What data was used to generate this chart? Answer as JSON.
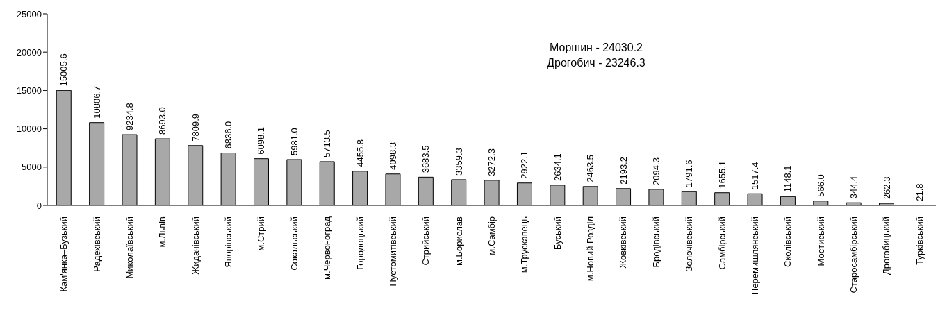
{
  "chart_data": {
    "type": "bar",
    "categories": [
      "Кам'янка–Бузький",
      "Радехівський",
      "Миколаївський",
      "м.Львів",
      "Жидачівський",
      "Яворівський",
      "м.Стрий",
      "Сокальський",
      "м.Червоноград",
      "Городоцький",
      "Пустомитівський",
      "Стрийський",
      "м.Борислав",
      "м.Самбір",
      "м.Трускавець",
      "Буський",
      "м.Новий Розділ",
      "Жовківський",
      "Бродівський",
      "Золочівський",
      "Самбірський",
      "Перемишлянський",
      "Сколівський",
      "Мостиський",
      "Старосамбірський",
      "Дрогобицький",
      "Турківський"
    ],
    "values": [
      15005.6,
      10806.7,
      9234.8,
      8693.0,
      7809.9,
      6836.0,
      6098.1,
      5981.0,
      5713.5,
      4455.8,
      4098.3,
      3683.5,
      3359.3,
      3272.3,
      2922.1,
      2634.1,
      2463.5,
      2193.2,
      2094.3,
      1791.6,
      1655.1,
      1517.4,
      1148.1,
      566.0,
      344.4,
      262.3,
      21.8
    ],
    "value_labels": [
      "15005.6",
      "10806.7",
      "9234.8",
      "8693.0",
      "7809.9",
      "6836.0",
      "6098.1",
      "5981.0",
      "5713.5",
      "4455.8",
      "4098.3",
      "3683.5",
      "3359.3",
      "3272.3",
      "2922.1",
      "2634.1",
      "2463.5",
      "2193.2",
      "2094.3",
      "1791.6",
      "1655.1",
      "1517.4",
      "1148.1",
      "566.0",
      "344.4",
      "262.3",
      "21.8"
    ],
    "color": "#a8a8a8",
    "ylim": [
      0,
      25000
    ],
    "yticks": [
      0,
      5000,
      10000,
      15000,
      20000,
      25000
    ],
    "grid": false,
    "legend": false,
    "annotations": [
      "Моршин - 24030.2",
      "Дрогобич - 23246.3"
    ]
  }
}
